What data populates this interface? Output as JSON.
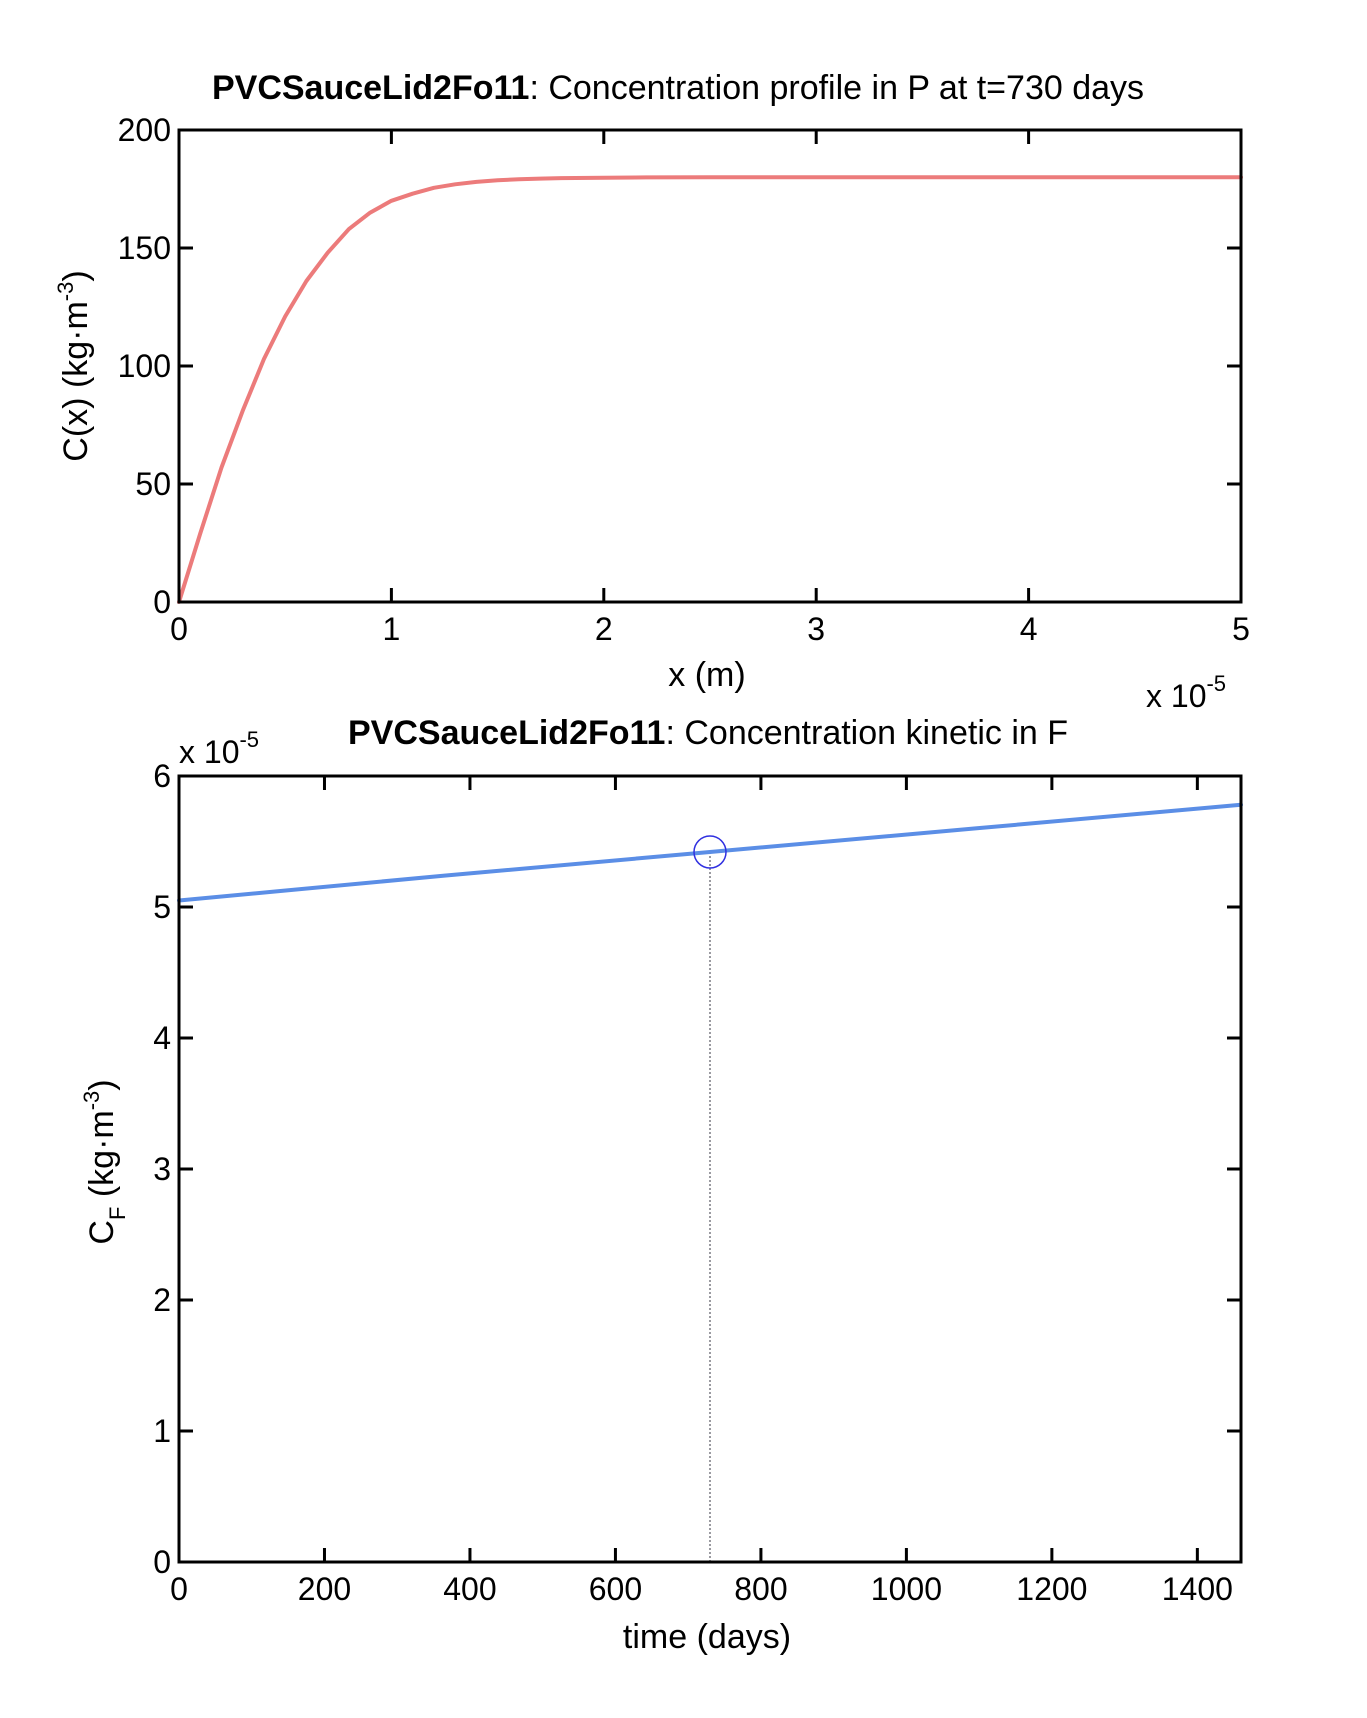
{
  "colors": {
    "profile_line": "#ec7b7b",
    "kinetic_line": "#5b8ee6",
    "marker": "#3030e0",
    "guide": "#9a9aa0"
  },
  "chart_data": [
    {
      "type": "line",
      "title_bold": "PVCSauceLid2Fo11",
      "title_rest": ": Concentration profile in P at t=730 days",
      "xlabel": "x (m)",
      "ylabel_main": "C(x) (kg·m",
      "ylabel_sup": "-3",
      "ylabel_close": ")",
      "x_multiplier_text": "x 10",
      "x_multiplier_exp": "-5",
      "xlim": [
        0,
        5
      ],
      "ylim": [
        0,
        200
      ],
      "xticks": [
        0,
        1,
        2,
        3,
        4,
        5
      ],
      "yticks": [
        0,
        50,
        100,
        150,
        200
      ],
      "xtick_labels": [
        "0",
        "1",
        "2",
        "3",
        "4",
        "5"
      ],
      "ytick_labels": [
        "0",
        "50",
        "100",
        "150",
        "200"
      ],
      "grid": false,
      "series": [
        {
          "x": [
            0,
            0.1,
            0.2,
            0.3,
            0.4,
            0.5,
            0.6,
            0.7,
            0.8,
            0.9,
            1.0,
            1.1,
            1.2,
            1.3,
            1.4,
            1.5,
            1.6,
            1.7,
            1.8,
            2.0,
            2.2,
            2.5,
            3.0,
            3.5,
            4.0,
            4.5,
            5.0
          ],
          "y": [
            0,
            29,
            57,
            81,
            103,
            121,
            136,
            148,
            158,
            165,
            170,
            173,
            175.5,
            177,
            178,
            178.7,
            179.1,
            179.4,
            179.6,
            179.8,
            179.9,
            180,
            180,
            180,
            180,
            180,
            180
          ]
        }
      ]
    },
    {
      "type": "line",
      "title_bold": "PVCSauceLid2Fo11",
      "title_rest": ": Concentration kinetic in F",
      "xlabel": "time (days)",
      "ylabel_main": "C",
      "ylabel_sub": "F",
      "ylabel_units": " (kg·m",
      "ylabel_sup": "-3",
      "ylabel_close": ")",
      "y_multiplier_text": "x 10",
      "y_multiplier_exp": "-5",
      "xlim": [
        0,
        1460
      ],
      "ylim": [
        0,
        6
      ],
      "xticks": [
        0,
        200,
        400,
        600,
        800,
        1000,
        1200,
        1400
      ],
      "yticks": [
        0,
        1,
        2,
        3,
        4,
        5,
        6
      ],
      "xtick_labels": [
        "0",
        "200",
        "400",
        "600",
        "800",
        "1000",
        "1200",
        "1400"
      ],
      "ytick_labels": [
        "0",
        "1",
        "2",
        "3",
        "4",
        "5",
        "6"
      ],
      "grid": false,
      "series": [
        {
          "x": [
            0,
            365,
            730,
            1095,
            1460
          ],
          "y": [
            5.05,
            5.24,
            5.42,
            5.6,
            5.78
          ]
        }
      ],
      "marker": {
        "x": 730,
        "y": 5.42
      }
    }
  ]
}
